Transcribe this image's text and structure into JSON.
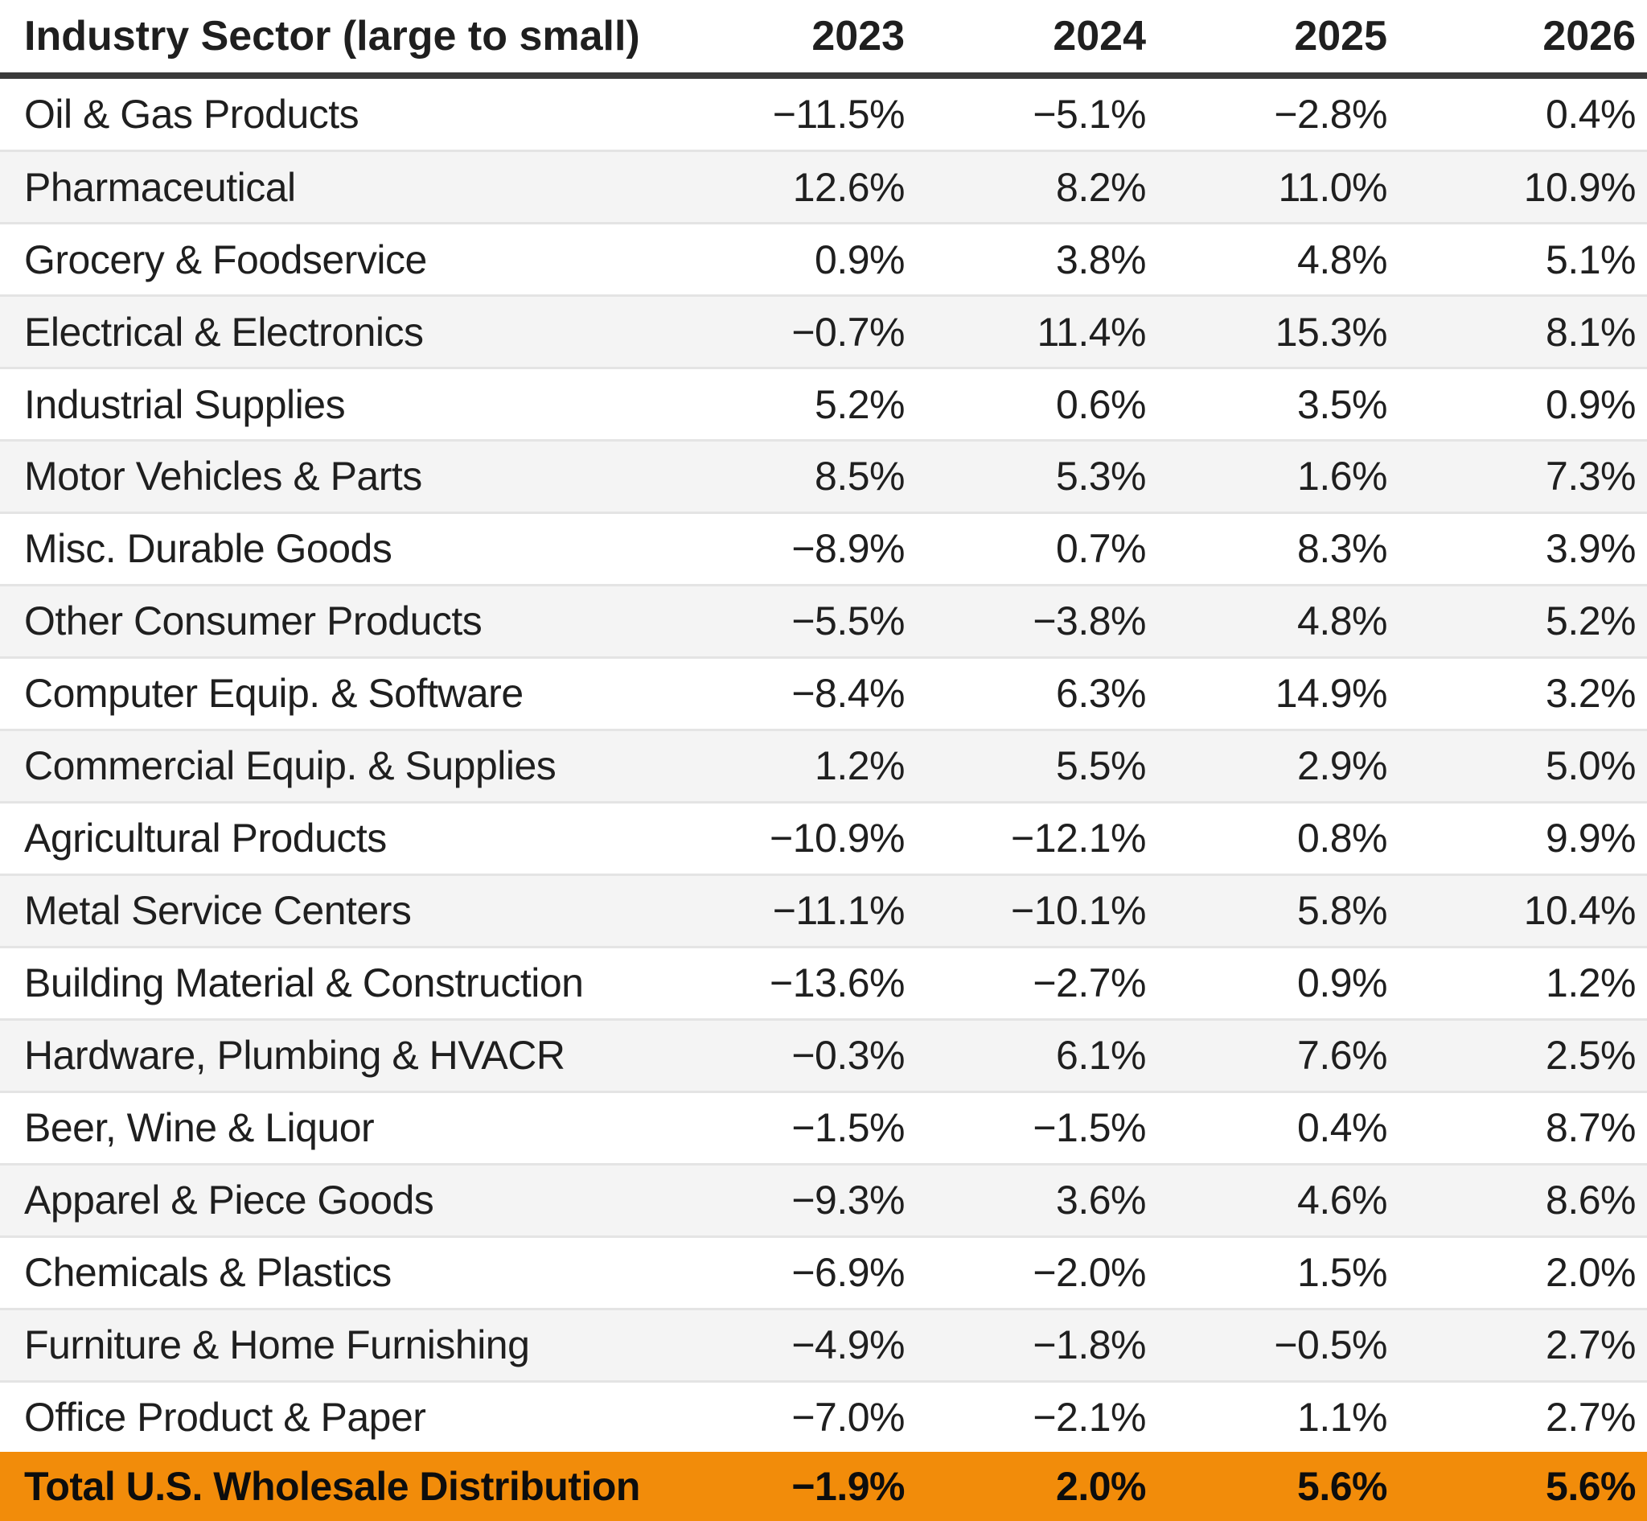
{
  "colors": {
    "total_row_bg": "#F28C0A",
    "stripe_bg": "#F4F4F4",
    "header_rule": "#3A3A3A",
    "row_rule": "#E4E4E4",
    "text": "#1F1F1F"
  },
  "table": {
    "header": {
      "sector_label": "Industry Sector (large to small)",
      "years": [
        "2023",
        "2024",
        "2025",
        "2026"
      ]
    },
    "rows": [
      {
        "sector": "Oil & Gas Products",
        "values": [
          "−11.5%",
          "−5.1%",
          "−2.8%",
          "0.4%"
        ]
      },
      {
        "sector": "Pharmaceutical",
        "values": [
          "12.6%",
          "8.2%",
          "11.0%",
          "10.9%"
        ]
      },
      {
        "sector": "Grocery & Foodservice",
        "values": [
          "0.9%",
          "3.8%",
          "4.8%",
          "5.1%"
        ]
      },
      {
        "sector": "Electrical & Electronics",
        "values": [
          "−0.7%",
          "11.4%",
          "15.3%",
          "8.1%"
        ]
      },
      {
        "sector": "Industrial Supplies",
        "values": [
          "5.2%",
          "0.6%",
          "3.5%",
          "0.9%"
        ]
      },
      {
        "sector": "Motor Vehicles & Parts",
        "values": [
          "8.5%",
          "5.3%",
          "1.6%",
          "7.3%"
        ]
      },
      {
        "sector": "Misc. Durable Goods",
        "values": [
          "−8.9%",
          "0.7%",
          "8.3%",
          "3.9%"
        ]
      },
      {
        "sector": "Other Consumer Products",
        "values": [
          "−5.5%",
          "−3.8%",
          "4.8%",
          "5.2%"
        ]
      },
      {
        "sector": "Computer Equip. & Software",
        "values": [
          "−8.4%",
          "6.3%",
          "14.9%",
          "3.2%"
        ]
      },
      {
        "sector": "Commercial Equip. & Supplies",
        "values": [
          "1.2%",
          "5.5%",
          "2.9%",
          "5.0%"
        ]
      },
      {
        "sector": "Agricultural Products",
        "values": [
          "−10.9%",
          "−12.1%",
          "0.8%",
          "9.9%"
        ]
      },
      {
        "sector": "Metal Service Centers",
        "values": [
          "−11.1%",
          "−10.1%",
          "5.8%",
          "10.4%"
        ]
      },
      {
        "sector": "Building Material & Construction",
        "values": [
          "−13.6%",
          "−2.7%",
          "0.9%",
          "1.2%"
        ]
      },
      {
        "sector": "Hardware, Plumbing & HVACR",
        "values": [
          "−0.3%",
          "6.1%",
          "7.6%",
          "2.5%"
        ]
      },
      {
        "sector": "Beer, Wine & Liquor",
        "values": [
          "−1.5%",
          "−1.5%",
          "0.4%",
          "8.7%"
        ]
      },
      {
        "sector": "Apparel & Piece Goods",
        "values": [
          "−9.3%",
          "3.6%",
          "4.6%",
          "8.6%"
        ]
      },
      {
        "sector": "Chemicals & Plastics",
        "values": [
          "−6.9%",
          "−2.0%",
          "1.5%",
          "2.0%"
        ]
      },
      {
        "sector": "Furniture & Home Furnishing",
        "values": [
          "−4.9%",
          "−1.8%",
          "−0.5%",
          "2.7%"
        ]
      },
      {
        "sector": "Office Product & Paper",
        "values": [
          "−7.0%",
          "−2.1%",
          "1.1%",
          "2.7%"
        ]
      }
    ],
    "total_row": {
      "sector": "Total U.S. Wholesale Distribution",
      "values": [
        "−1.9%",
        "2.0%",
        "5.6%",
        "5.6%"
      ]
    }
  },
  "chart_data": {
    "type": "table",
    "title": "Industry Sector (large to small)",
    "columns": [
      "Industry Sector (large to small)",
      "2023",
      "2024",
      "2025",
      "2026"
    ],
    "value_format": "percent",
    "rows": [
      [
        "Oil & Gas Products",
        -11.5,
        -5.1,
        -2.8,
        0.4
      ],
      [
        "Pharmaceutical",
        12.6,
        8.2,
        11.0,
        10.9
      ],
      [
        "Grocery & Foodservice",
        0.9,
        3.8,
        4.8,
        5.1
      ],
      [
        "Electrical & Electronics",
        -0.7,
        11.4,
        15.3,
        8.1
      ],
      [
        "Industrial Supplies",
        5.2,
        0.6,
        3.5,
        0.9
      ],
      [
        "Motor Vehicles & Parts",
        8.5,
        5.3,
        1.6,
        7.3
      ],
      [
        "Misc. Durable Goods",
        -8.9,
        0.7,
        8.3,
        3.9
      ],
      [
        "Other Consumer Products",
        -5.5,
        -3.8,
        4.8,
        5.2
      ],
      [
        "Computer Equip. & Software",
        -8.4,
        6.3,
        14.9,
        3.2
      ],
      [
        "Commercial Equip. & Supplies",
        1.2,
        5.5,
        2.9,
        5.0
      ],
      [
        "Agricultural Products",
        -10.9,
        -12.1,
        0.8,
        9.9
      ],
      [
        "Metal Service Centers",
        -11.1,
        -10.1,
        5.8,
        10.4
      ],
      [
        "Building Material & Construction",
        -13.6,
        -2.7,
        0.9,
        1.2
      ],
      [
        "Hardware, Plumbing & HVACR",
        -0.3,
        6.1,
        7.6,
        2.5
      ],
      [
        "Beer, Wine & Liquor",
        -1.5,
        -1.5,
        0.4,
        8.7
      ],
      [
        "Apparel & Piece Goods",
        -9.3,
        3.6,
        4.6,
        8.6
      ],
      [
        "Chemicals & Plastics",
        -6.9,
        -2.0,
        1.5,
        2.0
      ],
      [
        "Furniture & Home Furnishing",
        -4.9,
        -1.8,
        -0.5,
        2.7
      ],
      [
        "Office Product & Paper",
        -7.0,
        -2.1,
        1.1,
        2.7
      ]
    ],
    "total_row": [
      "Total U.S. Wholesale Distribution",
      -1.9,
      2.0,
      5.6,
      5.6
    ],
    "layout": {
      "zebra_striping": true,
      "total_row_highlight": "#F28C0A",
      "numeric_alignment": "right"
    }
  }
}
